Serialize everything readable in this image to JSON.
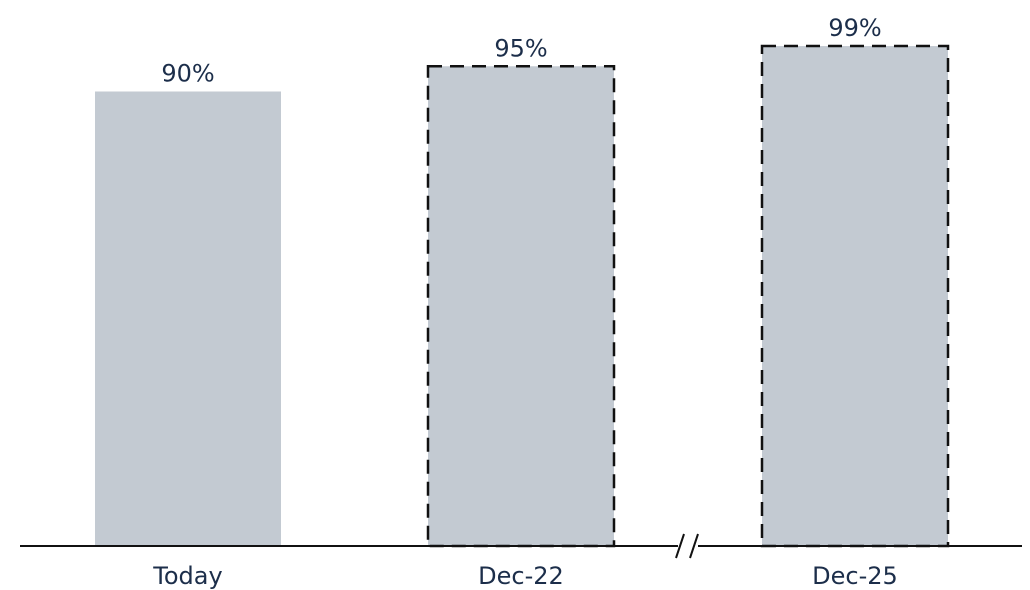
{
  "chart_data": {
    "type": "bar",
    "categories": [
      "Today",
      "Dec-22",
      "Dec-25"
    ],
    "values": [
      90,
      95,
      99
    ],
    "value_labels": [
      "90%",
      "95%",
      "99%"
    ],
    "bar_styles": [
      "solid",
      "dashed",
      "dashed"
    ],
    "ylim": [
      0,
      100
    ],
    "axis_break": "between Dec-22 and Dec-25",
    "grid": false,
    "legend": "none",
    "title": "",
    "xlabel": "",
    "ylabel": ""
  },
  "colors": {
    "bar_fill": "#c3cad2",
    "bar_dash": "#111111",
    "text": "#1c2e4a",
    "axis": "#111111",
    "background": "#ffffff"
  }
}
